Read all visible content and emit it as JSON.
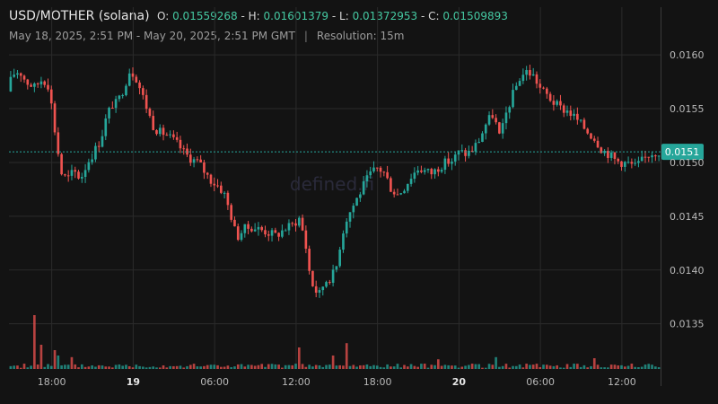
{
  "header": {
    "symbol": "USD/MOTHER (solana)",
    "o_label": "O:",
    "o_value": "0.01559268",
    "h_label": "- H:",
    "h_value": "0.01601379",
    "l_label": "- L:",
    "l_value": "0.01372953",
    "c_label": "- C:",
    "c_value": "0.01509893",
    "date_range": "May 18, 2025, 2:51 PM - May 20, 2025, 2:51 PM GMT",
    "separator": "|",
    "resolution": "Resolution: 15m"
  },
  "watermark": "defined.fi",
  "colors": {
    "background": "#131313",
    "grid": "#2b2b2b",
    "up": "#26a69a",
    "down": "#ef5350",
    "price_line": "#26a69a",
    "price_tag_bg": "#26a69a",
    "axis_text": "#b8b8b8"
  },
  "chart_data": {
    "type": "candlestick",
    "y_axis": {
      "ticks": [
        0.016,
        0.0155,
        0.015,
        0.0145,
        0.014,
        0.0135
      ],
      "tick_labels": [
        "0.0160",
        "0.0155",
        "0.0150",
        "0.0145",
        "0.0140",
        "0.0135"
      ],
      "range": [
        0.01308,
        0.01641
      ]
    },
    "x_axis": {
      "tick_labels": [
        {
          "label": "18:00",
          "bold": false,
          "pos": 3.15
        },
        {
          "label": "19",
          "bold": true,
          "pos": 9.15
        },
        {
          "label": "06:00",
          "bold": false,
          "pos": 15.15
        },
        {
          "label": "12:00",
          "bold": false,
          "pos": 21.15
        },
        {
          "label": "18:00",
          "bold": false,
          "pos": 27.15
        },
        {
          "label": "20",
          "bold": true,
          "pos": 33.15
        },
        {
          "label": "06:00",
          "bold": false,
          "pos": 39.15
        },
        {
          "label": "12:00",
          "bold": false,
          "pos": 45.15
        }
      ],
      "range_hours": [
        0,
        48
      ],
      "start": "2025-05-18T14:51:00Z"
    },
    "current_price": 0.01509893,
    "current_price_label": "0.0151",
    "candles_interval": "15m",
    "price_path_hours": [
      0,
      0.4,
      0.9,
      1.4,
      2.0,
      2.6,
      3.0,
      3.3,
      3.6,
      4.0,
      4.4,
      4.9,
      5.4,
      5.9,
      6.4,
      6.9,
      7.3,
      7.7,
      8.1,
      8.6,
      9.0,
      9.4,
      9.8,
      10.3,
      10.7,
      11.2,
      11.6,
      12.1,
      12.6,
      13.1,
      13.6,
      14.1,
      14.6,
      15.1,
      15.6,
      16.0,
      16.5,
      16.9,
      17.4,
      18.0,
      18.6,
      19.2,
      19.8,
      20.4,
      21.0,
      21.5,
      21.9,
      22.3,
      22.6,
      23.0,
      23.4,
      23.8,
      24.2,
      24.6,
      25.0,
      25.4,
      25.9,
      26.3,
      26.8,
      27.3,
      27.8,
      28.3,
      28.8,
      29.3,
      29.8,
      30.3,
      30.8,
      31.3,
      31.8,
      32.3,
      32.8,
      33.3,
      33.8,
      34.3,
      34.8,
      35.3,
      35.8,
      36.3,
      36.8,
      37.3,
      37.8,
      38.3,
      38.8,
      39.3,
      39.8,
      40.3,
      40.8,
      41.3,
      41.8,
      42.3,
      42.8,
      43.3,
      43.8,
      44.3,
      44.8,
      45.3,
      45.8,
      46.3,
      46.8,
      47.3,
      47.7,
      48.0
    ],
    "price_path_values": [
      0.01566,
      0.01582,
      0.01585,
      0.01575,
      0.0157,
      0.01578,
      0.01572,
      0.0155,
      0.0152,
      0.0149,
      0.01484,
      0.01492,
      0.01485,
      0.015,
      0.0151,
      0.01522,
      0.01542,
      0.01554,
      0.01555,
      0.0157,
      0.01585,
      0.01582,
      0.01568,
      0.0155,
      0.01535,
      0.01528,
      0.01527,
      0.01522,
      0.01516,
      0.01508,
      0.01503,
      0.015,
      0.0149,
      0.01482,
      0.01478,
      0.0147,
      0.0145,
      0.0143,
      0.01438,
      0.0144,
      0.01438,
      0.01435,
      0.01432,
      0.01438,
      0.01442,
      0.01448,
      0.0143,
      0.01395,
      0.01382,
      0.01378,
      0.0139,
      0.01393,
      0.014,
      0.0143,
      0.01448,
      0.01458,
      0.0147,
      0.0148,
      0.0149,
      0.01495,
      0.0149,
      0.01475,
      0.0147,
      0.01478,
      0.01488,
      0.01495,
      0.01492,
      0.0149,
      0.01496,
      0.015,
      0.01502,
      0.0151,
      0.01508,
      0.01512,
      0.01522,
      0.01537,
      0.01545,
      0.01522,
      0.01548,
      0.01565,
      0.0158,
      0.01585,
      0.0158,
      0.01568,
      0.01562,
      0.01555,
      0.0155,
      0.01548,
      0.01542,
      0.01535,
      0.01528,
      0.01522,
      0.01512,
      0.01508,
      0.01502,
      0.015,
      0.01499,
      0.01496,
      0.01502,
      0.01508,
      0.0151,
      0.0151
    ],
    "volume_spikes": [
      {
        "hour": 1.85,
        "rel": 1.0,
        "dir": "down"
      },
      {
        "hour": 2.35,
        "rel": 0.45,
        "dir": "down"
      },
      {
        "hour": 3.3,
        "rel": 0.35,
        "dir": "down"
      },
      {
        "hour": 3.6,
        "rel": 0.25,
        "dir": "up"
      },
      {
        "hour": 4.4,
        "rel": 0.22,
        "dir": "down"
      },
      {
        "hour": 21.3,
        "rel": 0.4,
        "dir": "down"
      },
      {
        "hour": 24.7,
        "rel": 0.48,
        "dir": "down"
      },
      {
        "hour": 23.8,
        "rel": 0.25,
        "dir": "down"
      },
      {
        "hour": 31.5,
        "rel": 0.18,
        "dir": "down"
      },
      {
        "hour": 35.8,
        "rel": 0.22,
        "dir": "up"
      },
      {
        "hour": 43.1,
        "rel": 0.2,
        "dir": "down"
      }
    ]
  }
}
